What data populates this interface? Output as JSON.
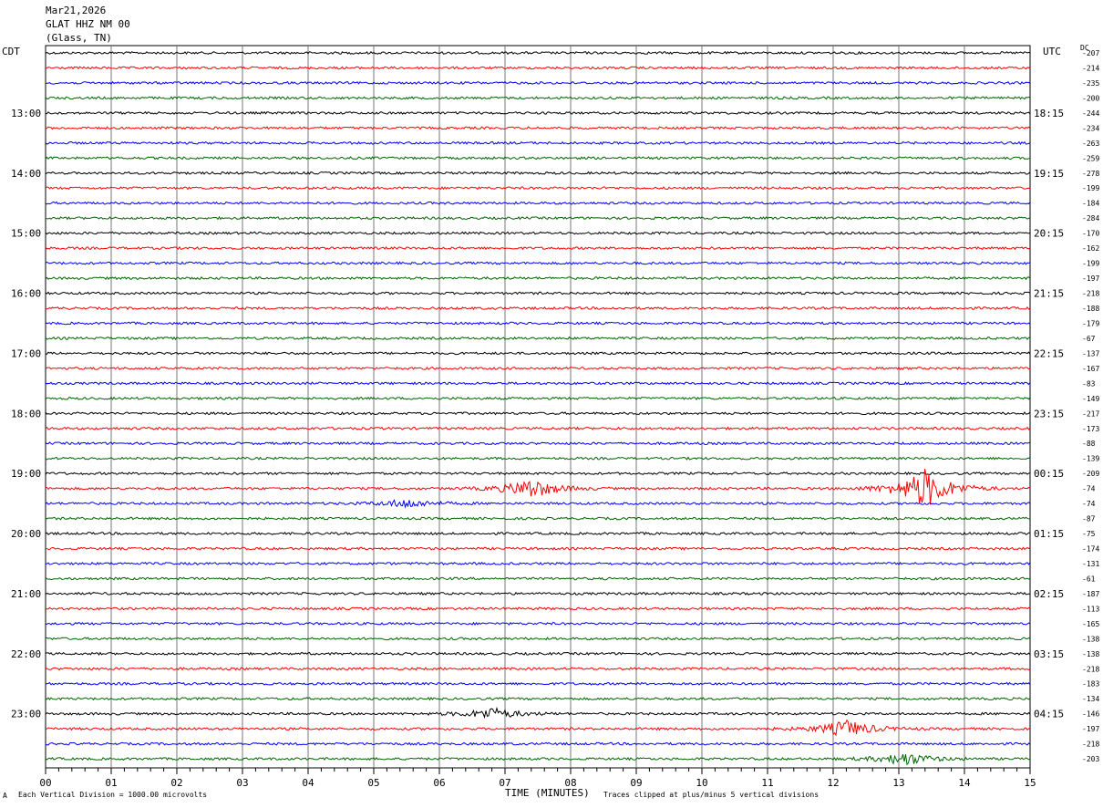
{
  "header": {
    "date": "Mar21,2026",
    "station": "GLAT HHZ NM 00",
    "location": "(Glass, TN)"
  },
  "left_timezone": "CDT",
  "right_timezone": "UTC",
  "dc_label": "DC",
  "footer": {
    "scale_note": "Each Vertical Division = 1000.00 microvolts",
    "clip_note": "Traces clipped at plus/minus 5 vertical divisions",
    "corner_mark": "A"
  },
  "colors": {
    "cycle": [
      "#000000",
      "#ff0000",
      "#0000ff",
      "#006600"
    ],
    "grid": "#777777",
    "frame": "#000000"
  },
  "chart_data": {
    "type": "line",
    "title": "",
    "xlabel": "TIME (MINUTES)",
    "ylabel": "",
    "xlim": [
      0,
      15
    ],
    "x_ticks": [
      "00",
      "01",
      "02",
      "03",
      "04",
      "05",
      "06",
      "07",
      "08",
      "09",
      "10",
      "11",
      "12",
      "13",
      "14",
      "15"
    ],
    "grid": true,
    "traces_per_hour": 4,
    "left_hour_labels": [
      "13:00",
      "14:00",
      "15:00",
      "16:00",
      "17:00",
      "18:00",
      "19:00",
      "20:00",
      "21:00",
      "22:00",
      "23:00"
    ],
    "right_hour_labels": [
      "18:15",
      "19:15",
      "20:15",
      "21:15",
      "22:15",
      "23:15",
      "00:15",
      "01:15",
      "02:15",
      "03:15",
      "04:15"
    ],
    "dc_offsets": [
      -207,
      -214,
      -235,
      -200,
      -244,
      -234,
      -263,
      -259,
      -278,
      -199,
      -184,
      -284,
      -170,
      -162,
      -199,
      -197,
      -218,
      -188,
      -179,
      -67,
      -137,
      -167,
      -83,
      -149,
      -217,
      -173,
      -88,
      -139,
      -209,
      -74,
      -74,
      -87,
      -75,
      -174,
      -131,
      -61,
      -187,
      -113,
      -165,
      -138,
      -138,
      -218,
      -183,
      -134,
      -146,
      -197,
      -218,
      -203
    ],
    "events": [
      {
        "trace": 29,
        "minute": 7.4,
        "amplitude": 14
      },
      {
        "trace": 29,
        "minute": 13.4,
        "amplitude": 28
      },
      {
        "trace": 30,
        "minute": 5.5,
        "amplitude": 6
      },
      {
        "trace": 44,
        "minute": 6.8,
        "amplitude": 8
      },
      {
        "trace": 45,
        "minute": 12.2,
        "amplitude": 12
      },
      {
        "trace": 47,
        "minute": 13.1,
        "amplitude": 9
      }
    ]
  }
}
